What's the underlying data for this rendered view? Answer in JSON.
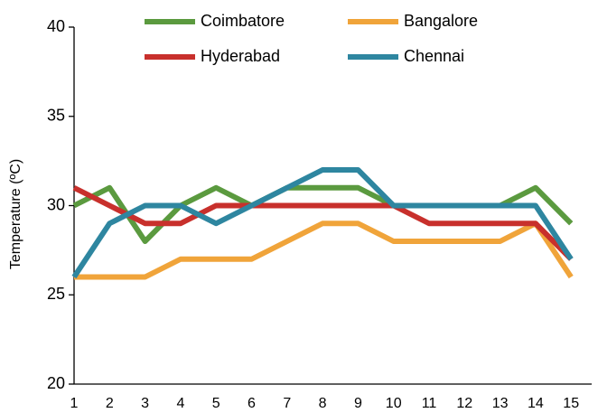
{
  "chart_data": {
    "type": "line",
    "y_label": "Temperature (ºC)",
    "categories": [
      "1",
      "2",
      "3",
      "4",
      "5",
      "6",
      "7",
      "8",
      "9",
      "10",
      "11",
      "12",
      "13",
      "14",
      "15"
    ],
    "series": [
      {
        "name": "Coimbatore",
        "color": "#5b9a3f",
        "values": [
          30,
          31,
          28,
          30,
          31,
          30,
          31,
          31,
          31,
          30,
          30,
          30,
          30,
          31,
          29
        ]
      },
      {
        "name": "Bangalore",
        "color": "#f0a43a",
        "values": [
          26,
          26,
          26,
          27,
          27,
          27,
          28,
          29,
          29,
          28,
          28,
          28,
          28,
          29,
          26
        ]
      },
      {
        "name": "Hyderabad",
        "color": "#c8302c",
        "values": [
          31,
          30,
          29,
          29,
          30,
          30,
          30,
          30,
          30,
          30,
          29,
          29,
          29,
          29,
          27
        ]
      },
      {
        "name": "Chennai",
        "color": "#2e86a0",
        "values": [
          26,
          29,
          30,
          30,
          29,
          30,
          31,
          32,
          32,
          30,
          30,
          30,
          30,
          30,
          27
        ]
      }
    ],
    "ylim": [
      20,
      40
    ],
    "yticks": [
      20,
      25,
      30,
      35,
      40
    ]
  }
}
